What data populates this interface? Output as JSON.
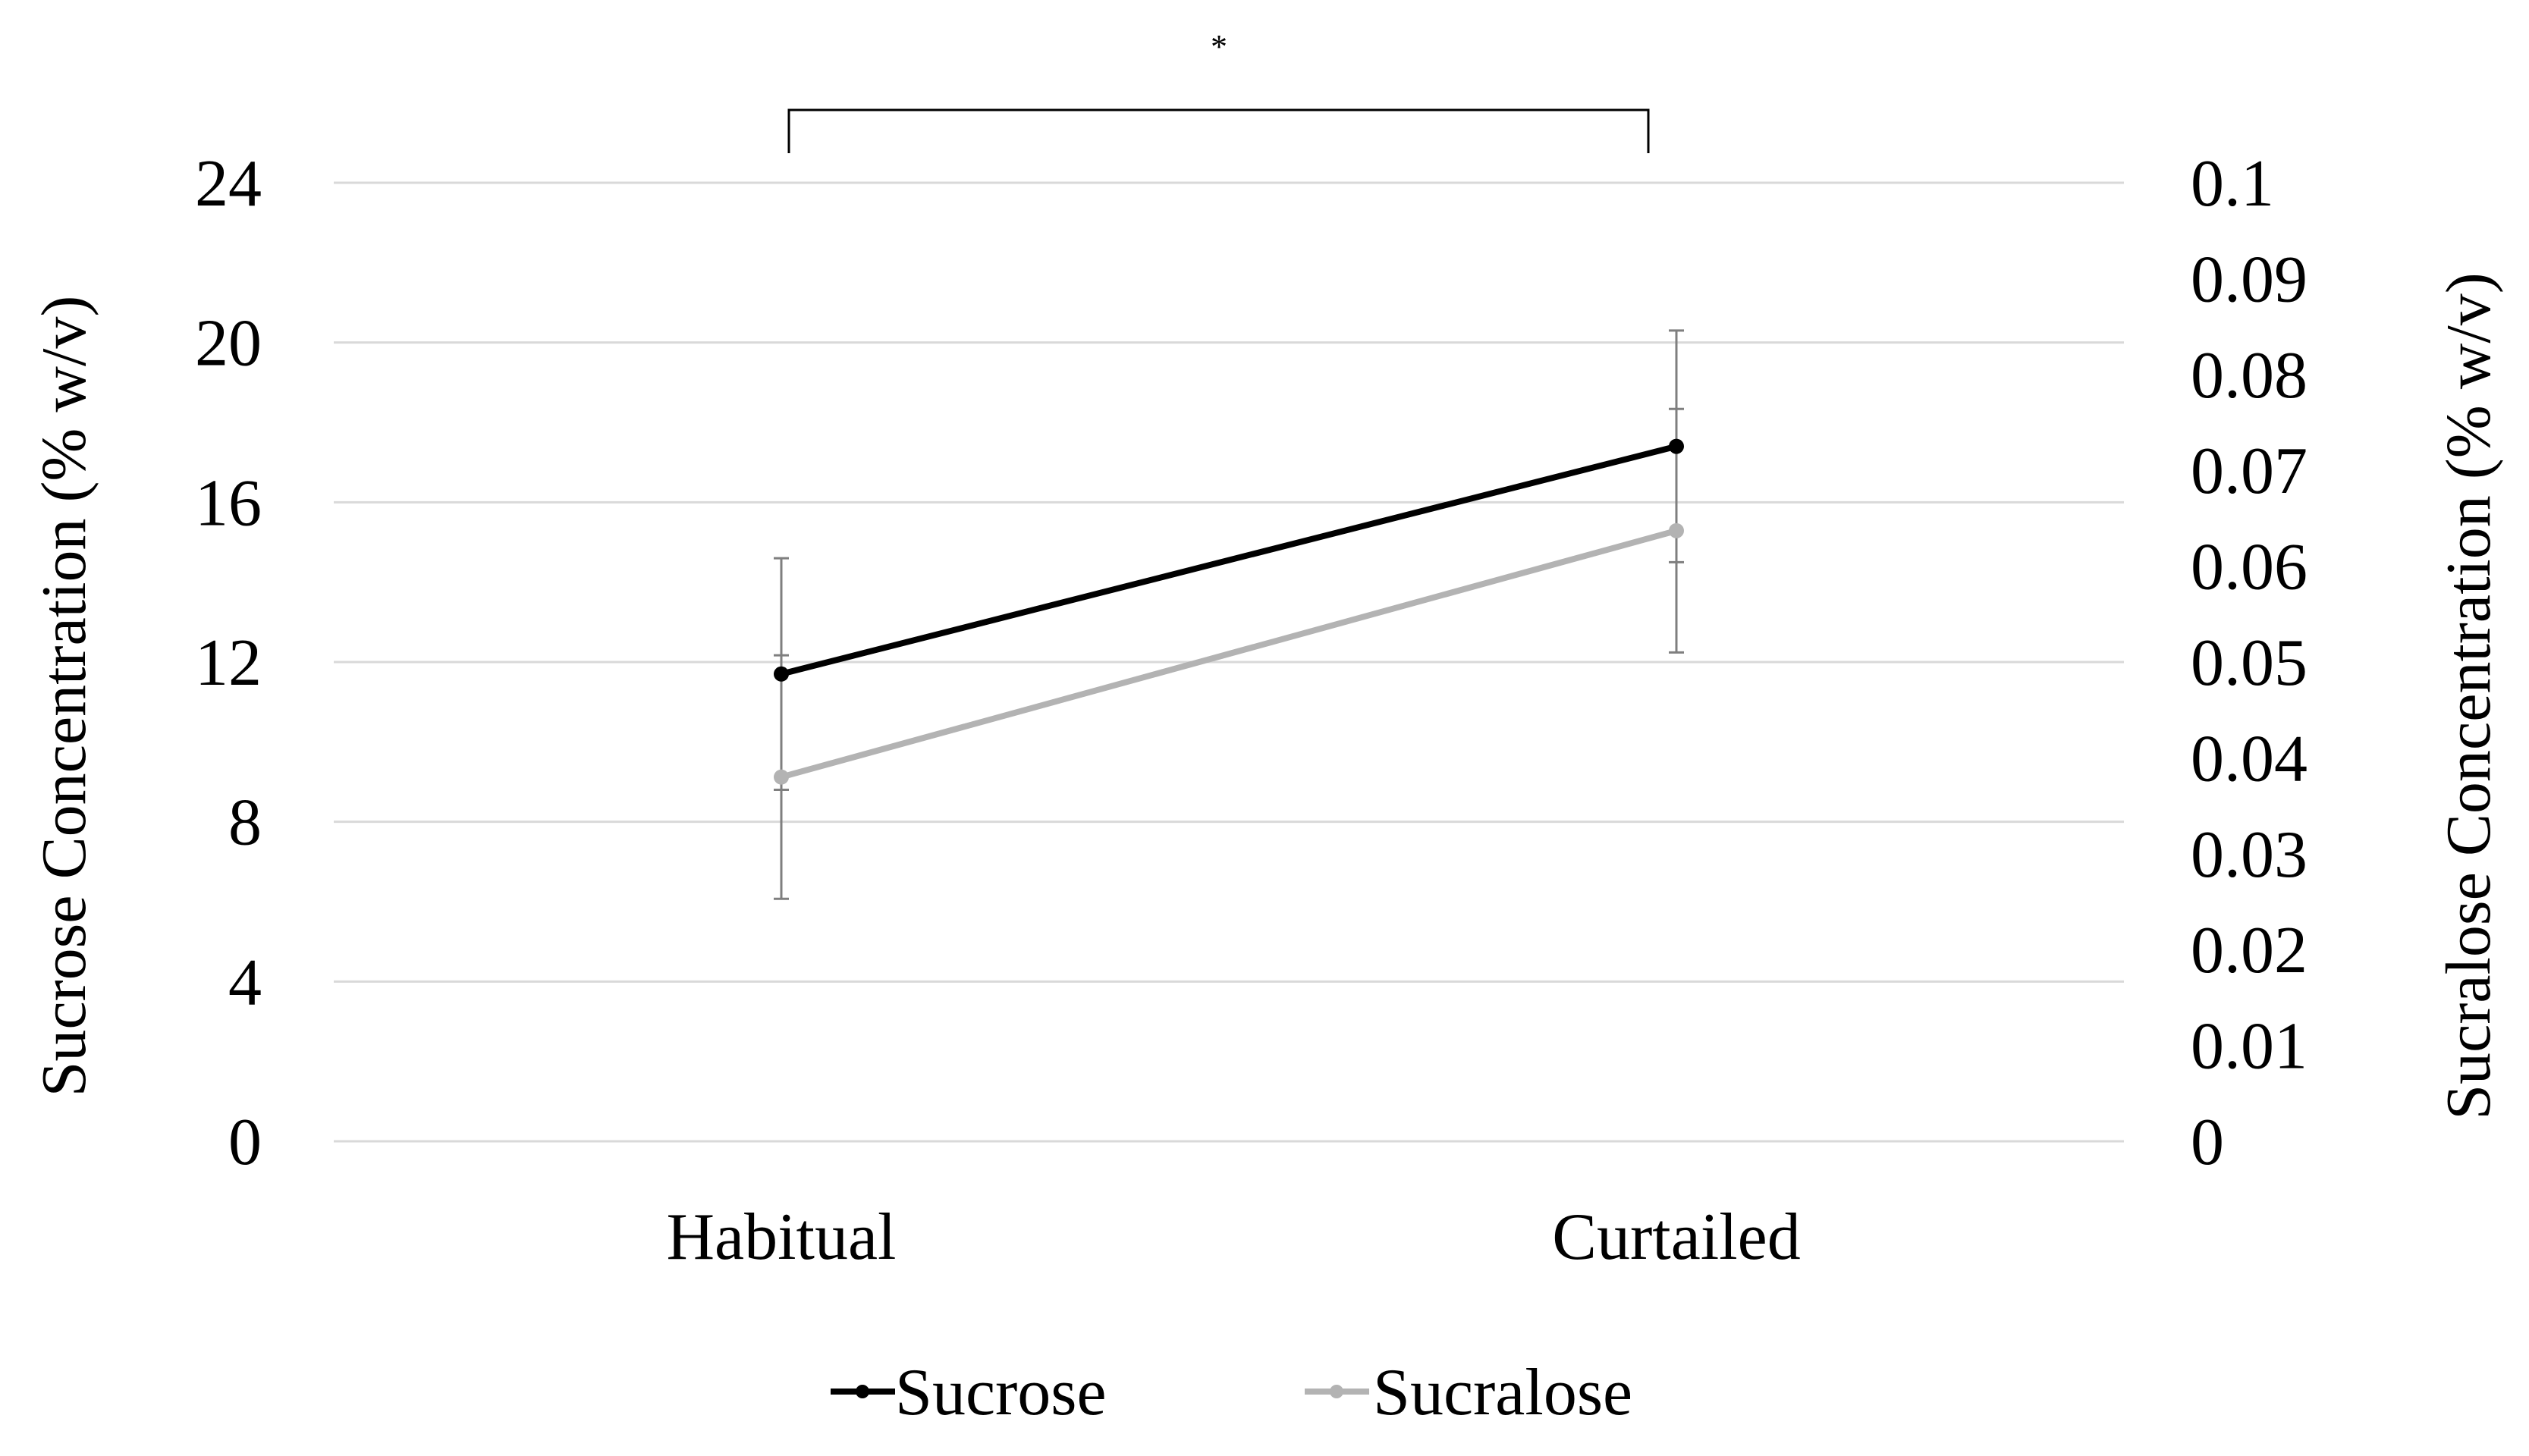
{
  "chart_data": {
    "type": "line",
    "categories": [
      "Habitual",
      "Curtailed"
    ],
    "series": [
      {
        "name": "Sucrose",
        "axis": "left",
        "color": "#000000",
        "values": [
          11.7,
          17.4
        ],
        "error": [
          2.9,
          2.9
        ]
      },
      {
        "name": "Sucralose",
        "axis": "right",
        "color": "#b3b3b3",
        "values": [
          0.038,
          0.0637
        ],
        "error": [
          0.0127,
          0.0127
        ]
      }
    ],
    "ylabel": "Sucrose Concentration (% w/v)",
    "ylim": [
      0,
      24
    ],
    "yticks": [
      "0",
      "4",
      "8",
      "12",
      "16",
      "20",
      "24"
    ],
    "y2label": "Sucralose Concentration (% w/v)",
    "y2lim": [
      0,
      0.1
    ],
    "y2ticks": [
      "0",
      "0.01",
      "0.02",
      "0.03",
      "0.04",
      "0.05",
      "0.06",
      "0.07",
      "0.08",
      "0.09",
      "0.1"
    ],
    "grid": true,
    "legend": "bottom",
    "significance": {
      "label": "*",
      "between": [
        "Habitual",
        "Curtailed"
      ]
    }
  }
}
